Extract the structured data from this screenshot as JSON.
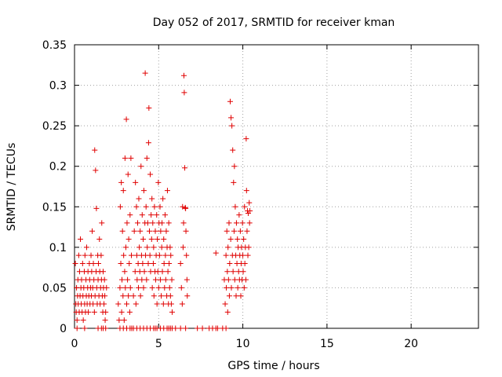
{
  "chart_data": {
    "type": "scatter",
    "title": "Day 052 of 2017, SRMTID for receiver kman",
    "xlabel": "GPS time / hours",
    "ylabel": "SRMTID / TECUs",
    "xlim": [
      0,
      24
    ],
    "ylim": [
      0,
      0.35
    ],
    "grid": true,
    "marker": "+",
    "color": "#e00000",
    "x_ticks": [
      {
        "value": 0,
        "label": "0"
      },
      {
        "value": 5,
        "label": "5"
      },
      {
        "value": 10,
        "label": "10"
      },
      {
        "value": 15,
        "label": "15"
      },
      {
        "value": 20,
        "label": "20"
      }
    ],
    "y_ticks": [
      {
        "value": 0,
        "label": "0"
      },
      {
        "value": 0.05,
        "label": "0.05"
      },
      {
        "value": 0.1,
        "label": "0.1"
      },
      {
        "value": 0.15,
        "label": "0.15"
      },
      {
        "value": 0.2,
        "label": "0.2"
      },
      {
        "value": 0.25,
        "label": "0.25"
      },
      {
        "value": 0.3,
        "label": "0.3"
      },
      {
        "value": 0.35,
        "label": "0.35"
      }
    ],
    "points": [
      [
        0.05,
        0.08
      ],
      [
        0.08,
        0.03
      ],
      [
        0.1,
        0.02
      ],
      [
        0.12,
        0.05
      ],
      [
        0.15,
        0.01
      ],
      [
        0.18,
        0.04
      ],
      [
        0.2,
        0.06
      ],
      [
        0.22,
        0.03
      ],
      [
        0.25,
        0.09
      ],
      [
        0.28,
        0.02
      ],
      [
        0.3,
        0.07
      ],
      [
        0.33,
        0.04
      ],
      [
        0.35,
        0.11
      ],
      [
        0.38,
        0.05
      ],
      [
        0.4,
        0.03
      ],
      [
        0.42,
        0.06
      ],
      [
        0.45,
        0.02
      ],
      [
        0.48,
        0.08
      ],
      [
        0.5,
        0.04
      ],
      [
        0.52,
        0.01
      ],
      [
        0.55,
        0.05
      ],
      [
        0.58,
        0.07
      ],
      [
        0.6,
        0.03
      ],
      [
        0.62,
        0.09
      ],
      [
        0.65,
        0.02
      ],
      [
        0.68,
        0.06
      ],
      [
        0.7,
        0.04
      ],
      [
        0.72,
        0.1
      ],
      [
        0.75,
        0.03
      ],
      [
        0.78,
        0.05
      ],
      [
        0.8,
        0.07
      ],
      [
        0.82,
        0.02
      ],
      [
        0.85,
        0.04
      ],
      [
        0.88,
        0.08
      ],
      [
        0.9,
        0.06
      ],
      [
        0.92,
        0.03
      ],
      [
        0.95,
        0.05
      ],
      [
        0.98,
        0.09
      ],
      [
        1.0,
        0.04
      ],
      [
        1.02,
        0.07
      ],
      [
        1.05,
        0.12
      ],
      [
        1.08,
        0.05
      ],
      [
        1.1,
        0.03
      ],
      [
        1.12,
        0.08
      ],
      [
        1.15,
        0.06
      ],
      [
        1.18,
        0.02
      ],
      [
        1.2,
        0.22
      ],
      [
        1.22,
        0.04
      ],
      [
        1.25,
        0.195
      ],
      [
        1.28,
        0.07
      ],
      [
        1.3,
        0.148
      ],
      [
        1.32,
        0.05
      ],
      [
        1.35,
        0.03
      ],
      [
        1.38,
        0.09
      ],
      [
        1.4,
        0.06
      ],
      [
        1.42,
        0.08
      ],
      [
        1.45,
        0.04
      ],
      [
        1.48,
        0.11
      ],
      [
        1.5,
        0.07
      ],
      [
        1.52,
        0.03
      ],
      [
        1.55,
        0.05
      ],
      [
        1.58,
        0.09
      ],
      [
        1.6,
        0.06
      ],
      [
        1.62,
        0.13
      ],
      [
        1.65,
        0.04
      ],
      [
        1.68,
        0.02
      ],
      [
        1.7,
        0.07
      ],
      [
        1.72,
        0.05
      ],
      [
        1.75,
        0.03
      ],
      [
        1.78,
        0.06
      ],
      [
        1.8,
        0.04
      ],
      [
        1.82,
        0.01
      ],
      [
        1.85,
        0.02
      ],
      [
        1.9,
        0.05
      ],
      [
        0.15,
        0.0
      ],
      [
        0.6,
        0.0
      ],
      [
        1.4,
        0.0
      ],
      [
        1.6,
        0.0
      ],
      [
        1.7,
        0.0
      ],
      [
        1.85,
        0.0
      ],
      [
        2.6,
        0.03
      ],
      [
        2.65,
        0.01
      ],
      [
        2.7,
        0.05
      ],
      [
        2.72,
        0.15
      ],
      [
        2.75,
        0.08
      ],
      [
        2.78,
        0.18
      ],
      [
        2.8,
        0.02
      ],
      [
        2.82,
        0.06
      ],
      [
        2.85,
        0.12
      ],
      [
        2.88,
        0.04
      ],
      [
        2.9,
        0.17
      ],
      [
        2.92,
        0.09
      ],
      [
        2.95,
        0.01
      ],
      [
        2.98,
        0.07
      ],
      [
        3.0,
        0.21
      ],
      [
        3.02,
        0.05
      ],
      [
        3.05,
        0.1
      ],
      [
        3.08,
        0.258
      ],
      [
        3.1,
        0.03
      ],
      [
        3.12,
        0.13
      ],
      [
        3.15,
        0.06
      ],
      [
        3.18,
        0.19
      ],
      [
        3.2,
        0.04
      ],
      [
        3.22,
        0.11
      ],
      [
        3.25,
        0.08
      ],
      [
        3.28,
        0.02
      ],
      [
        3.3,
        0.14
      ],
      [
        3.32,
        0.05
      ],
      [
        3.35,
        0.21
      ],
      [
        3.38,
        0.09
      ],
      [
        2.7,
        0.0
      ],
      [
        2.9,
        0.0
      ],
      [
        3.1,
        0.0
      ],
      [
        3.3,
        0.0
      ],
      [
        3.4,
        0.0
      ],
      [
        3.5,
        0.0
      ],
      [
        3.5,
        0.04
      ],
      [
        3.55,
        0.12
      ],
      [
        3.6,
        0.07
      ],
      [
        3.62,
        0.18
      ],
      [
        3.65,
        0.03
      ],
      [
        3.68,
        0.15
      ],
      [
        3.7,
        0.09
      ],
      [
        3.72,
        0.06
      ],
      [
        3.75,
        0.13
      ],
      [
        3.78,
        0.08
      ],
      [
        3.8,
        0.05
      ],
      [
        3.82,
        0.16
      ],
      [
        3.85,
        0.1
      ],
      [
        3.88,
        0.07
      ],
      [
        3.9,
        0.12
      ],
      [
        3.92,
        0.04
      ],
      [
        3.95,
        0.2
      ],
      [
        3.98,
        0.09
      ],
      [
        4.0,
        0.06
      ],
      [
        4.02,
        0.14
      ],
      [
        4.05,
        0.08
      ],
      [
        4.08,
        0.11
      ],
      [
        4.1,
        0.05
      ],
      [
        4.12,
        0.17
      ],
      [
        4.15,
        0.07
      ],
      [
        4.18,
        0.13
      ],
      [
        4.2,
        0.315
      ],
      [
        4.22,
        0.09
      ],
      [
        4.25,
        0.15
      ],
      [
        4.28,
        0.06
      ],
      [
        4.3,
        0.21
      ],
      [
        4.32,
        0.1
      ],
      [
        4.35,
        0.13
      ],
      [
        4.38,
        0.08
      ],
      [
        4.4,
        0.229
      ],
      [
        4.42,
        0.272
      ],
      [
        4.45,
        0.12
      ],
      [
        4.48,
        0.09
      ],
      [
        4.5,
        0.19
      ],
      [
        4.52,
        0.07
      ],
      [
        4.55,
        0.14
      ],
      [
        4.58,
        0.11
      ],
      [
        4.6,
        0.16
      ],
      [
        4.62,
        0.05
      ],
      [
        4.65,
        0.13
      ],
      [
        4.68,
        0.08
      ],
      [
        4.7,
        0.1
      ],
      [
        4.72,
        0.04
      ],
      [
        4.75,
        0.15
      ],
      [
        4.78,
        0.07
      ],
      [
        4.8,
        0.12
      ],
      [
        4.82,
        0.06
      ],
      [
        4.85,
        0.09
      ],
      [
        4.88,
        0.14
      ],
      [
        4.9,
        0.03
      ],
      [
        4.92,
        0.11
      ],
      [
        4.95,
        0.07
      ],
      [
        4.98,
        0.18
      ],
      [
        5.0,
        0.05
      ],
      [
        5.02,
        0.13
      ],
      [
        3.7,
        0.0
      ],
      [
        3.9,
        0.0
      ],
      [
        4.1,
        0.0
      ],
      [
        4.3,
        0.0
      ],
      [
        4.5,
        0.0
      ],
      [
        4.7,
        0.0
      ],
      [
        4.8,
        0.0
      ],
      [
        4.9,
        0.0
      ],
      [
        5.05,
        0.09
      ],
      [
        5.08,
        0.15
      ],
      [
        5.1,
        0.06
      ],
      [
        5.12,
        0.12
      ],
      [
        5.15,
        0.04
      ],
      [
        5.18,
        0.1
      ],
      [
        5.2,
        0.13
      ],
      [
        5.22,
        0.07
      ],
      [
        5.25,
        0.16
      ],
      [
        5.28,
        0.03
      ],
      [
        5.3,
        0.11
      ],
      [
        5.32,
        0.08
      ],
      [
        5.35,
        0.05
      ],
      [
        5.38,
        0.14
      ],
      [
        5.4,
        0.09
      ],
      [
        5.42,
        0.06
      ],
      [
        5.45,
        0.12
      ],
      [
        5.48,
        0.04
      ],
      [
        5.5,
        0.1
      ],
      [
        5.52,
        0.17
      ],
      [
        5.55,
        0.07
      ],
      [
        5.58,
        0.03
      ],
      [
        5.6,
        0.13
      ],
      [
        5.62,
        0.08
      ],
      [
        5.65,
        0.05
      ],
      [
        5.68,
        0.1
      ],
      [
        5.7,
        0.04
      ],
      [
        5.72,
        0.09
      ],
      [
        5.75,
        0.03
      ],
      [
        5.78,
        0.06
      ],
      [
        5.8,
        0.02
      ],
      [
        5.1,
        0.0
      ],
      [
        5.3,
        0.0
      ],
      [
        5.5,
        0.0
      ],
      [
        5.6,
        0.0
      ],
      [
        5.7,
        0.0
      ],
      [
        5.8,
        0.0
      ],
      [
        6.3,
        0.08
      ],
      [
        6.35,
        0.05
      ],
      [
        6.4,
        0.03
      ],
      [
        6.42,
        0.15
      ],
      [
        6.45,
        0.1
      ],
      [
        6.48,
        0.13
      ],
      [
        6.5,
        0.312
      ],
      [
        6.52,
        0.291
      ],
      [
        6.55,
        0.198
      ],
      [
        6.58,
        0.149
      ],
      [
        6.6,
        0.148
      ],
      [
        6.62,
        0.12
      ],
      [
        6.65,
        0.09
      ],
      [
        6.68,
        0.06
      ],
      [
        6.7,
        0.04
      ],
      [
        6.0,
        0.0
      ],
      [
        6.3,
        0.0
      ],
      [
        6.6,
        0.0
      ],
      [
        7.3,
        0.0
      ],
      [
        7.6,
        0.0
      ],
      [
        8.0,
        0.0
      ],
      [
        8.2,
        0.0
      ],
      [
        8.4,
        0.0
      ],
      [
        8.5,
        0.0
      ],
      [
        8.8,
        0.0
      ],
      [
        9.0,
        0.0
      ],
      [
        8.4,
        0.093
      ],
      [
        8.9,
        0.06
      ],
      [
        8.95,
        0.03
      ],
      [
        9.0,
        0.09
      ],
      [
        9.02,
        0.05
      ],
      [
        9.05,
        0.12
      ],
      [
        9.08,
        0.07
      ],
      [
        9.1,
        0.02
      ],
      [
        9.12,
        0.1
      ],
      [
        9.15,
        0.06
      ],
      [
        9.18,
        0.13
      ],
      [
        9.2,
        0.04
      ],
      [
        9.22,
        0.08
      ],
      [
        9.25,
        0.28
      ],
      [
        9.28,
        0.11
      ],
      [
        9.3,
        0.26
      ],
      [
        9.32,
        0.05
      ],
      [
        9.35,
        0.25
      ],
      [
        9.38,
        0.09
      ],
      [
        9.4,
        0.22
      ],
      [
        9.42,
        0.07
      ],
      [
        9.45,
        0.18
      ],
      [
        9.48,
        0.12
      ],
      [
        9.5,
        0.2
      ],
      [
        9.52,
        0.06
      ],
      [
        9.55,
        0.15
      ],
      [
        9.58,
        0.09
      ],
      [
        9.6,
        0.04
      ],
      [
        9.62,
        0.13
      ],
      [
        9.65,
        0.08
      ],
      [
        9.68,
        0.11
      ],
      [
        9.7,
        0.05
      ],
      [
        9.72,
        0.1
      ],
      [
        9.75,
        0.07
      ],
      [
        9.78,
        0.14
      ],
      [
        9.8,
        0.06
      ],
      [
        9.82,
        0.09
      ],
      [
        9.85,
        0.12
      ],
      [
        9.88,
        0.04
      ],
      [
        9.9,
        0.08
      ],
      [
        9.92,
        0.1
      ],
      [
        9.95,
        0.06
      ],
      [
        9.98,
        0.13
      ],
      [
        10.0,
        0.09
      ],
      [
        10.02,
        0.07
      ],
      [
        10.05,
        0.11
      ],
      [
        10.08,
        0.05
      ],
      [
        10.1,
        0.15
      ],
      [
        10.12,
        0.08
      ],
      [
        10.15,
        0.1
      ],
      [
        10.18,
        0.06
      ],
      [
        10.2,
        0.234
      ],
      [
        10.22,
        0.17
      ],
      [
        10.25,
        0.12
      ],
      [
        10.28,
        0.145
      ],
      [
        10.3,
        0.09
      ],
      [
        10.32,
        0.142
      ],
      [
        10.35,
        0.1
      ],
      [
        10.38,
        0.155
      ],
      [
        10.4,
        0.13
      ],
      [
        10.42,
        0.145
      ]
    ]
  }
}
